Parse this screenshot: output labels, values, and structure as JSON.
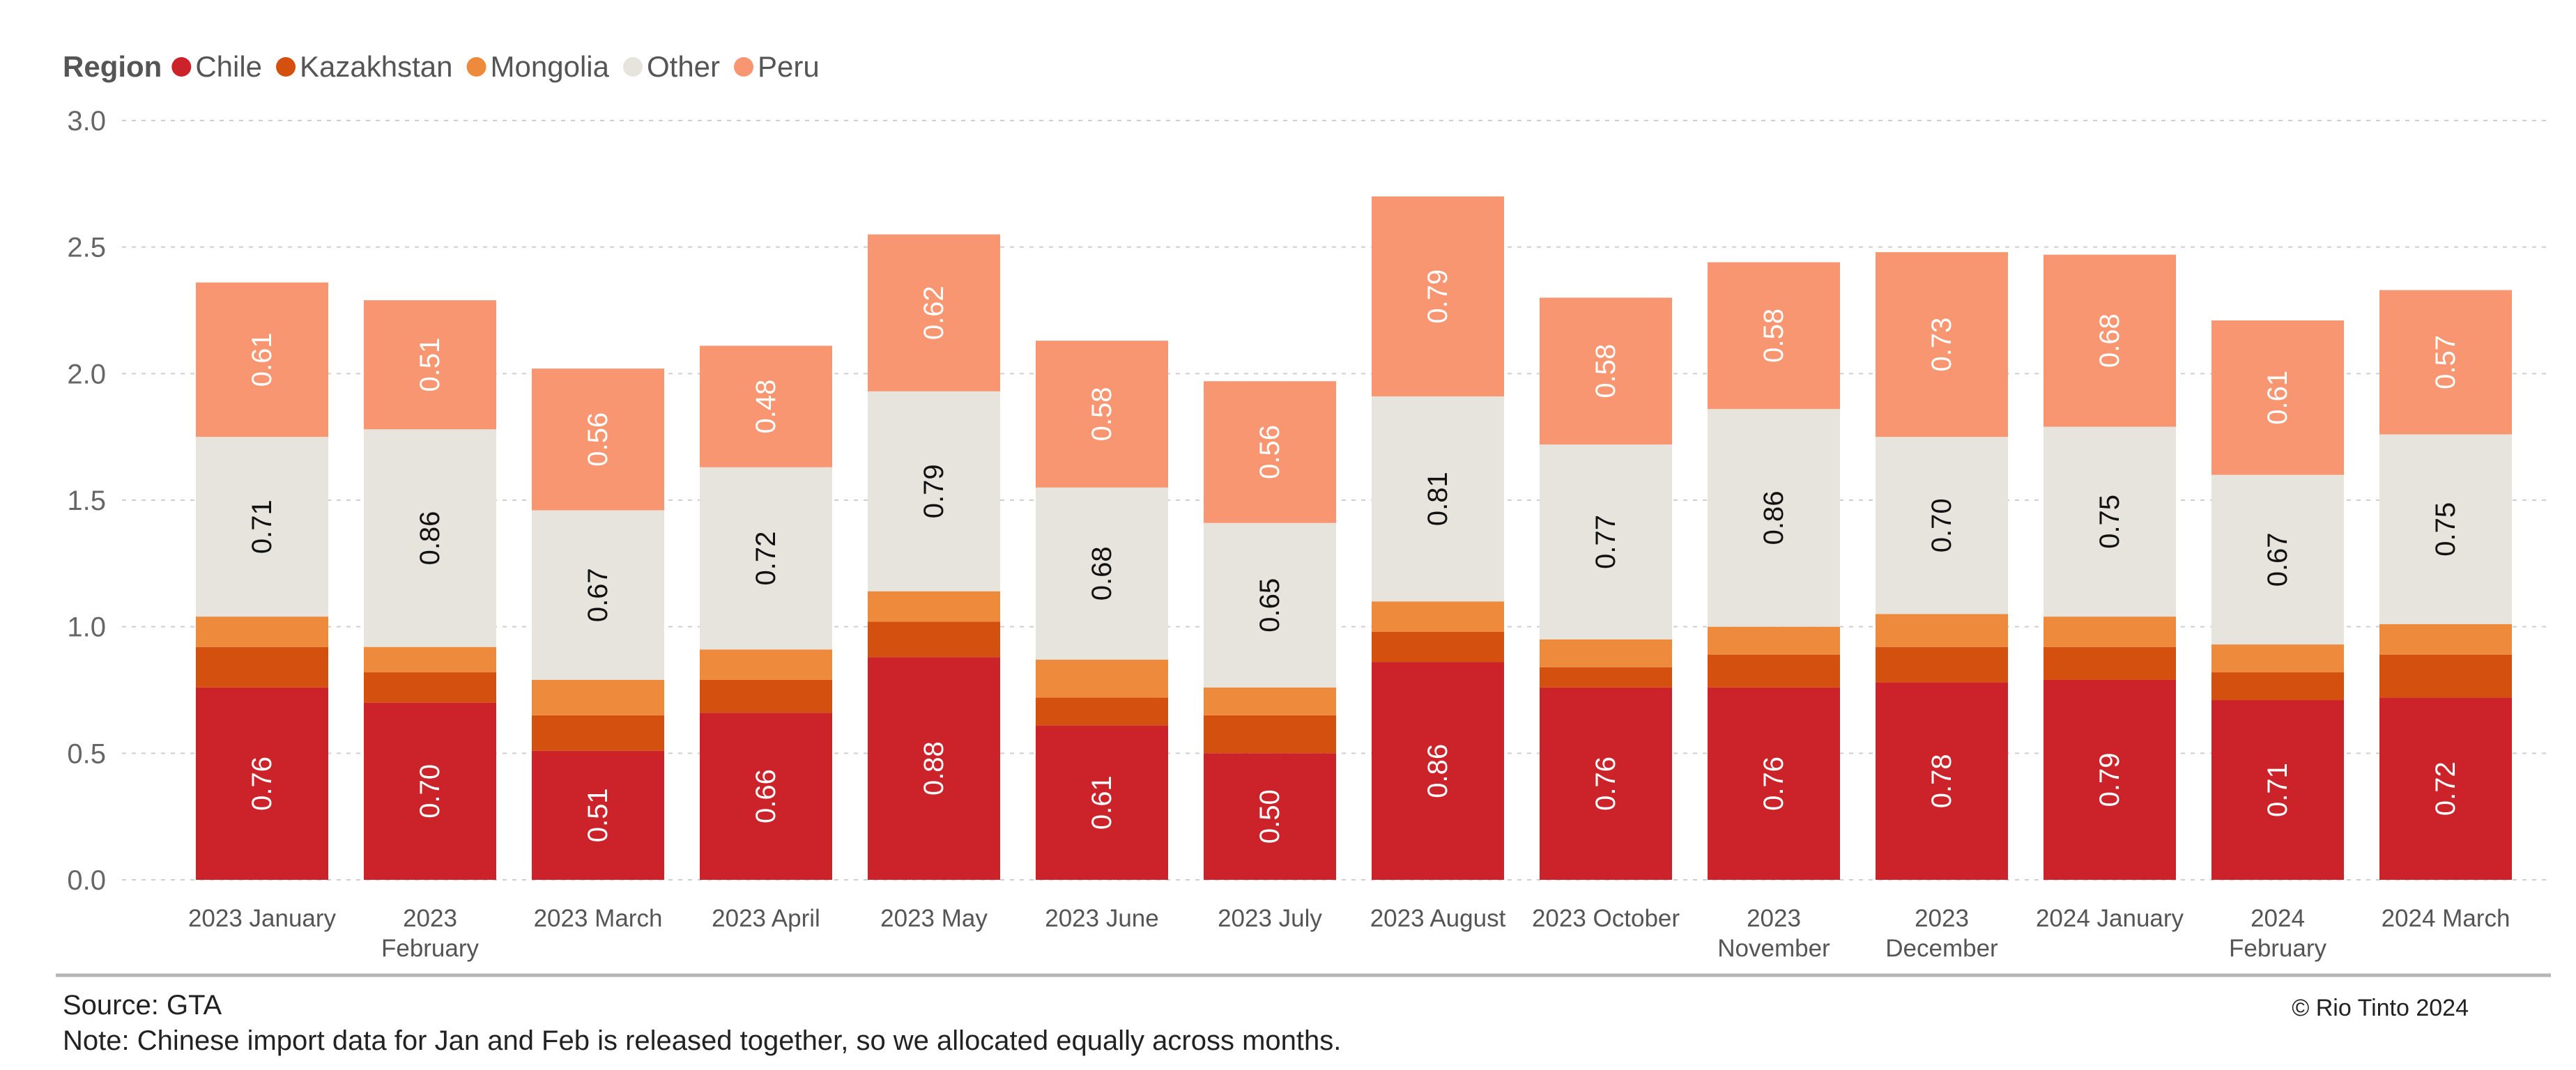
{
  "chart_data": {
    "type": "bar",
    "stacked": true,
    "legend_title": "Region",
    "legend_position": "top-left",
    "categories": [
      [
        "2023 January"
      ],
      [
        "2023",
        "February"
      ],
      [
        "2023 March"
      ],
      [
        "2023 April"
      ],
      [
        "2023 May"
      ],
      [
        "2023 June"
      ],
      [
        "2023 July"
      ],
      [
        "2023 August"
      ],
      [
        "2023 October"
      ],
      [
        "2023",
        "November"
      ],
      [
        "2023",
        "December"
      ],
      [
        "2024 January"
      ],
      [
        "2024",
        "February"
      ],
      [
        "2024 March"
      ]
    ],
    "series": [
      {
        "name": "Chile",
        "color": "#cc2229",
        "label_color": "#ffffff",
        "show_labels": true,
        "values": [
          0.76,
          0.7,
          0.51,
          0.66,
          0.88,
          0.61,
          0.5,
          0.86,
          0.76,
          0.76,
          0.78,
          0.79,
          0.71,
          0.72
        ]
      },
      {
        "name": "Kazakhstan",
        "color": "#d4500e",
        "label_color": "#ffffff",
        "show_labels": false,
        "values": [
          0.16,
          0.12,
          0.14,
          0.13,
          0.14,
          0.11,
          0.15,
          0.12,
          0.08,
          0.13,
          0.14,
          0.13,
          0.11,
          0.17
        ]
      },
      {
        "name": "Mongolia",
        "color": "#ee8a3c",
        "label_color": "#ffffff",
        "show_labels": false,
        "values": [
          0.12,
          0.1,
          0.14,
          0.12,
          0.12,
          0.15,
          0.11,
          0.12,
          0.11,
          0.11,
          0.13,
          0.12,
          0.11,
          0.12
        ]
      },
      {
        "name": "Other",
        "color": "#e6e4dd",
        "label_color": "#111111",
        "show_labels": true,
        "values": [
          0.71,
          0.86,
          0.67,
          0.72,
          0.79,
          0.68,
          0.65,
          0.81,
          0.77,
          0.86,
          0.7,
          0.75,
          0.67,
          0.75
        ]
      },
      {
        "name": "Peru",
        "color": "#f79670",
        "label_color": "#ffffff",
        "show_labels": true,
        "values": [
          0.61,
          0.51,
          0.56,
          0.48,
          0.62,
          0.58,
          0.56,
          0.79,
          0.58,
          0.58,
          0.73,
          0.68,
          0.61,
          0.57
        ]
      }
    ],
    "ylim": [
      0,
      3.0
    ],
    "yticks": [
      "0.0",
      "0.5",
      "1.0",
      "1.5",
      "2.0",
      "2.5",
      "3.0"
    ],
    "grid": true,
    "data_label_decimals": 2
  },
  "footer": {
    "source": "Source: GTA",
    "note": "Note: Chinese import data for Jan and Feb is released together, so we allocated equally across months.",
    "copyright": "© Rio Tinto 2024"
  }
}
